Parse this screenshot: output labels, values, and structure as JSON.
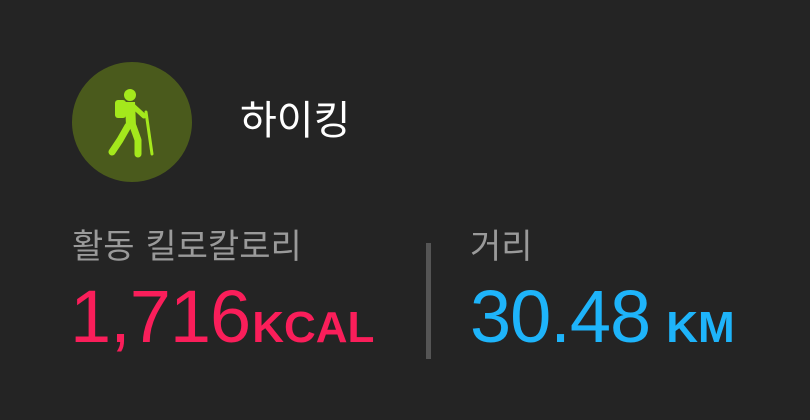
{
  "activity": {
    "name": "하이킹",
    "icon": "hiking-icon",
    "icon_color": "#a4e81c",
    "icon_bg_color": "#4a5a1c"
  },
  "metrics": {
    "calories": {
      "label": "활동 킬로칼로리",
      "value": "1,716",
      "unit": "KCAL",
      "color": "#fa1e5a"
    },
    "distance": {
      "label": "거리",
      "value": "30.48",
      "unit": "KM",
      "color": "#1eb4fa"
    }
  }
}
